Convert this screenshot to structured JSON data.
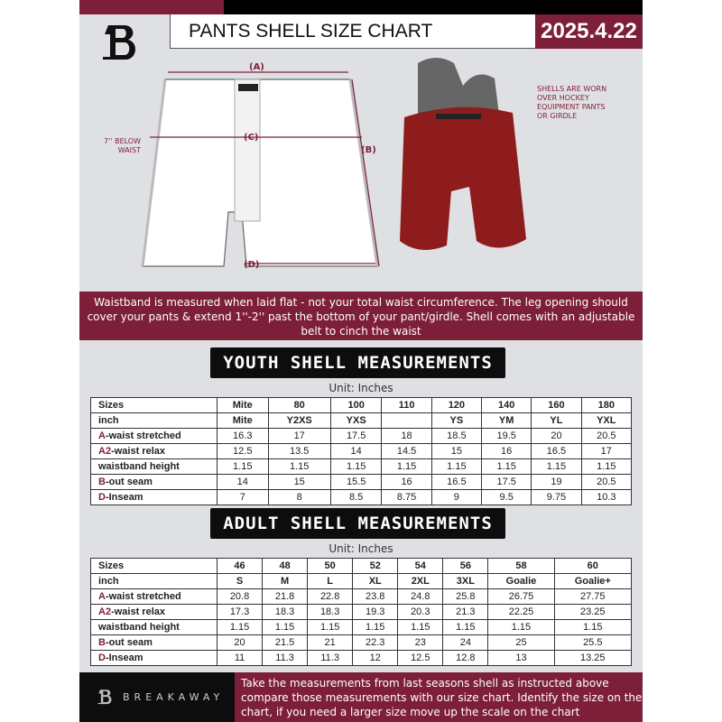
{
  "header": {
    "title": "PANTS SHELL SIZE CHART",
    "date": "2025.4.22"
  },
  "diagram": {
    "label_a": "(A)",
    "label_b": "(B)",
    "label_c": "(C)",
    "label_d": "(D)",
    "below_waist_note": "7'' BELOW WAIST",
    "shell_note": "SHELLS ARE WORN OVER HOCKEY EQUIPMENT PANTS OR GIRDLE"
  },
  "banner": {
    "text": "Waistband is measured when laid flat - not your total waist circumference. The leg opening should cover your pants & extend 1''-2'' past the bottom of your pant/girdle. Shell comes with an adjustable belt to cinch the waist"
  },
  "youth": {
    "title": "YOUTH SHELL MEASUREMENTS",
    "unit": "Unit: Inches",
    "rows": [
      {
        "prefix": "",
        "label": "Sizes",
        "values": [
          "Mite",
          "80",
          "100",
          "110",
          "120",
          "140",
          "160",
          "180"
        ]
      },
      {
        "prefix": "",
        "label": "inch",
        "values": [
          "Mite",
          "Y2XS",
          "YXS",
          "",
          "YS",
          "YM",
          "YL",
          "YXL"
        ]
      },
      {
        "prefix": "A",
        "label": "-waist stretched",
        "values": [
          "16.3",
          "17",
          "17.5",
          "18",
          "18.5",
          "19.5",
          "20",
          "20.5"
        ]
      },
      {
        "prefix": "A2",
        "label": "-waist relax",
        "values": [
          "12.5",
          "13.5",
          "14",
          "14.5",
          "15",
          "16",
          "16.5",
          "17"
        ]
      },
      {
        "prefix": "",
        "label": "waistband height",
        "values": [
          "1.15",
          "1.15",
          "1.15",
          "1.15",
          "1.15",
          "1.15",
          "1.15",
          "1.15"
        ]
      },
      {
        "prefix": "B",
        "label": "-out seam",
        "values": [
          "14",
          "15",
          "15.5",
          "16",
          "16.5",
          "17.5",
          "19",
          "20.5"
        ]
      },
      {
        "prefix": "D",
        "label": "-Inseam",
        "values": [
          "7",
          "8",
          "8.5",
          "8.75",
          "9",
          "9.5",
          "9.75",
          "10.3"
        ]
      }
    ]
  },
  "adult": {
    "title": "ADULT SHELL MEASUREMENTS",
    "unit": "Unit: Inches",
    "rows": [
      {
        "prefix": "",
        "label": "Sizes",
        "values": [
          "46",
          "48",
          "50",
          "52",
          "54",
          "56",
          "58",
          "60"
        ]
      },
      {
        "prefix": "",
        "label": "inch",
        "values": [
          "S",
          "M",
          "L",
          "XL",
          "2XL",
          "3XL",
          "Goalie",
          "Goalie+"
        ]
      },
      {
        "prefix": "A",
        "label": "-waist stretched",
        "values": [
          "20.8",
          "21.8",
          "22.8",
          "23.8",
          "24.8",
          "25.8",
          "26.75",
          "27.75"
        ]
      },
      {
        "prefix": "A2",
        "label": "-waist relax",
        "values": [
          "17.3",
          "18.3",
          "18.3",
          "19.3",
          "20.3",
          "21.3",
          "22.25",
          "23.25"
        ]
      },
      {
        "prefix": "",
        "label": "waistband height",
        "values": [
          "1.15",
          "1.15",
          "1.15",
          "1.15",
          "1.15",
          "1.15",
          "1.15",
          "1.15"
        ]
      },
      {
        "prefix": "B",
        "label": "-out seam",
        "values": [
          "20",
          "21.5",
          "21",
          "22.3",
          "23",
          "24",
          "25",
          "25.5"
        ]
      },
      {
        "prefix": "D",
        "label": "-Inseam",
        "values": [
          "11",
          "11.3",
          "11.3",
          "12",
          "12.5",
          "12.8",
          "13",
          "13.25"
        ]
      }
    ]
  },
  "footer": {
    "brand": "BREAKAWAY",
    "text": "Take the measurements from last seasons shell as instructed above compare those measurements  with our size chart. Identify the size on the chart, if you need a larger size move up the scale on the chart"
  },
  "colors": {
    "maroon": "#7d1f38",
    "black": "#0d0d0d",
    "background": "#dfe0e3",
    "shell_red": "#8e1c1c"
  }
}
